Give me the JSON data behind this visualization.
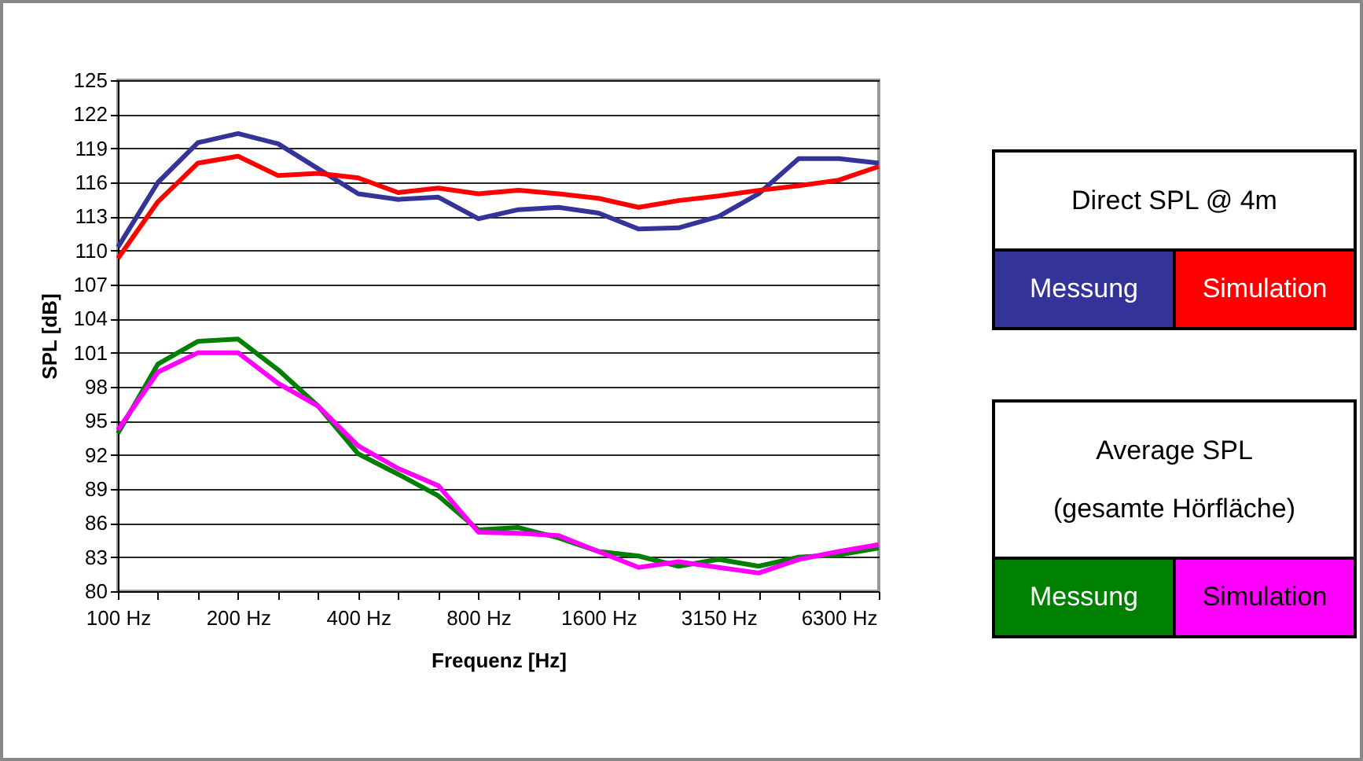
{
  "chart_data": {
    "type": "line",
    "xlabel": "Frequenz [Hz]",
    "ylabel": "SPL [dB]",
    "categories": [
      "100 Hz",
      null,
      null,
      "200 Hz",
      null,
      null,
      "400 Hz",
      null,
      null,
      "800 Hz",
      null,
      null,
      "1600 Hz",
      null,
      null,
      "3150 Hz",
      null,
      null,
      "6300 Hz",
      null
    ],
    "series": [
      {
        "name": "Messung",
        "color": "#333399",
        "values": [
          110.3,
          116.0,
          119.5,
          120.3,
          119.4,
          117.2,
          115.0,
          114.5,
          114.7,
          112.8,
          113.6,
          113.8,
          113.3,
          111.9,
          112.0,
          113.0,
          115.0,
          118.1,
          118.1,
          117.7
        ]
      },
      {
        "name": "Simulation",
        "color": "#ff0000",
        "values": [
          109.3,
          114.3,
          117.7,
          118.3,
          116.6,
          116.8,
          116.4,
          115.1,
          115.5,
          115.0,
          115.3,
          115.0,
          114.6,
          113.8,
          114.4,
          114.8,
          115.3,
          115.7,
          116.2,
          117.4
        ]
      },
      {
        "name": "Messung",
        "color": "#008000",
        "values": [
          93.9,
          100.0,
          102.0,
          102.2,
          99.5,
          96.3,
          92.1,
          90.3,
          88.4,
          85.4,
          85.6,
          84.7,
          83.5,
          83.1,
          82.2,
          82.8,
          82.2,
          83.0,
          83.2,
          83.8
        ]
      },
      {
        "name": "Simulation",
        "color": "#ff00ff",
        "values": [
          94.2,
          99.3,
          101.0,
          101.0,
          98.3,
          96.3,
          92.8,
          90.8,
          89.3,
          85.2,
          85.1,
          84.9,
          83.5,
          82.1,
          82.6,
          82.1,
          81.6,
          82.8,
          83.5,
          84.1
        ]
      }
    ],
    "ylim": [
      80,
      125
    ],
    "yticks": [
      80,
      83,
      86,
      89,
      92,
      95,
      98,
      101,
      104,
      107,
      110,
      113,
      116,
      119,
      122,
      125
    ],
    "grid": "y",
    "legend": "right",
    "annotations": [
      "Direct SPL @ 4m",
      "Average SPL\n(gesamte Hörfläche)"
    ]
  }
}
